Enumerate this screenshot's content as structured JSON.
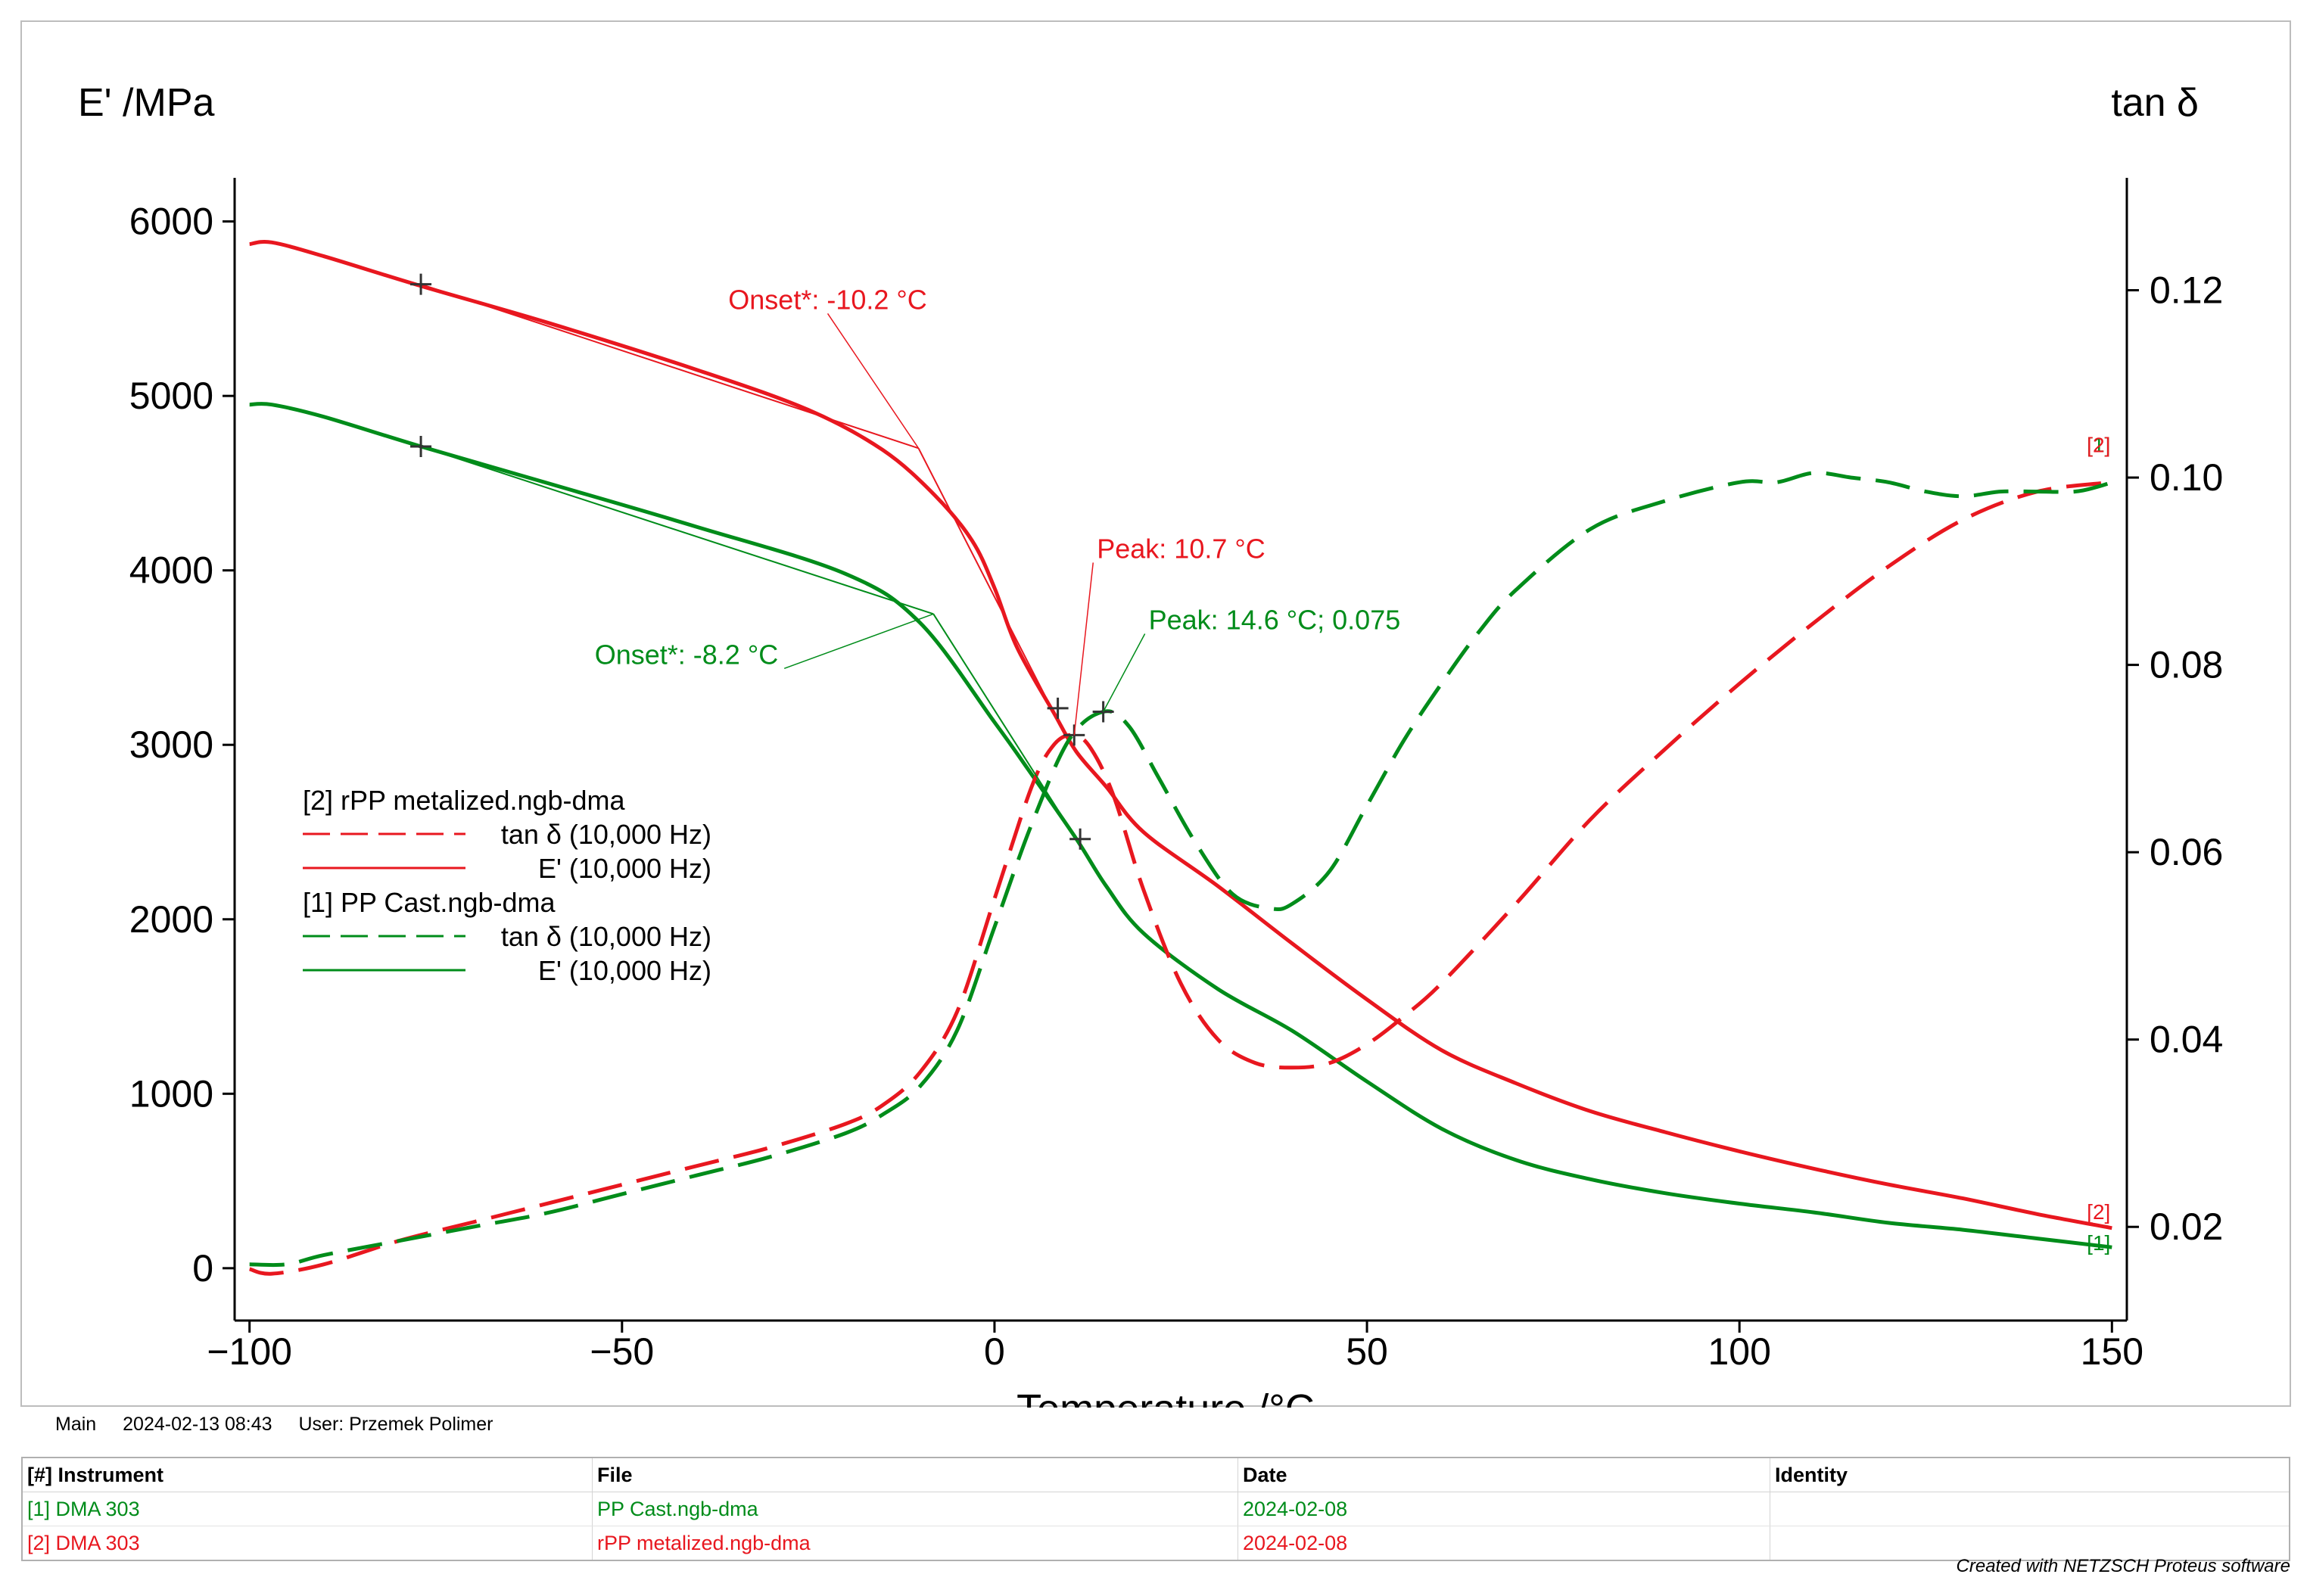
{
  "chart_data": {
    "type": "line",
    "title": "",
    "xlabel": "Temperature /°C",
    "ylabel_left": "E' /MPa",
    "ylabel_right": "tan δ",
    "xlim": [
      -102,
      152
    ],
    "ylim_left": [
      -300,
      6250
    ],
    "ylim_right": [
      0.01,
      0.132
    ],
    "x_ticks": [
      -100,
      -50,
      0,
      50,
      100,
      150
    ],
    "x_tick_labels": [
      "−100",
      "−50",
      "0",
      "50",
      "100",
      "150"
    ],
    "y_left_ticks": [
      0,
      1000,
      2000,
      3000,
      4000,
      5000,
      6000
    ],
    "y_right_ticks": [
      0.02,
      0.04,
      0.06,
      0.08,
      0.1,
      0.12
    ],
    "y_right_tick_labels": [
      "0.02",
      "0.04",
      "0.06",
      "0.08",
      "0.10",
      "0.12"
    ],
    "grid": false,
    "colors": {
      "red": "#e8171f",
      "green": "#008c1a"
    },
    "legend": {
      "placement": "center-left",
      "groups": [
        {
          "header": "[2]  rPP metalized.ngb-dma",
          "color": "#e8171f",
          "entries": [
            {
              "label": "tan δ (10,000 Hz)",
              "style": "dashed"
            },
            {
              "label": "E' (10,000 Hz)",
              "style": "solid"
            }
          ]
        },
        {
          "header": "[1]  PP Cast.ngb-dma",
          "color": "#008c1a",
          "entries": [
            {
              "label": "tan δ (10,000 Hz)",
              "style": "dashed"
            },
            {
              "label": "E' (10,000 Hz)",
              "style": "solid"
            }
          ]
        }
      ]
    },
    "series": [
      {
        "name": "[2] rPP metalized E' (10,000 Hz)",
        "file": "rPP metalized.ngb-dma",
        "axis": "left",
        "color": "#e8171f",
        "style": "solid",
        "x": [
          -100,
          -97,
          -90,
          -77,
          -60,
          -40,
          -25,
          -15,
          -8,
          -3,
          0,
          3,
          8,
          11,
          15,
          20,
          30,
          40,
          50,
          60,
          70,
          80,
          90,
          100,
          110,
          120,
          130,
          140,
          150
        ],
        "y": [
          5870,
          5880,
          5800,
          5630,
          5420,
          5150,
          4920,
          4690,
          4430,
          4170,
          3900,
          3560,
          3180,
          2960,
          2760,
          2500,
          2190,
          1860,
          1540,
          1250,
          1060,
          900,
          780,
          670,
          570,
          480,
          400,
          310,
          230
        ]
      },
      {
        "name": "[1] PP Cast E' (10,000 Hz)",
        "file": "PP Cast.ngb-dma",
        "axis": "left",
        "color": "#008c1a",
        "style": "solid",
        "x": [
          -100,
          -97,
          -90,
          -77,
          -60,
          -40,
          -20,
          -10,
          0,
          5,
          11,
          15,
          20,
          30,
          40,
          50,
          60,
          70,
          80,
          90,
          100,
          110,
          120,
          130,
          140,
          150
        ],
        "y": [
          4950,
          4950,
          4880,
          4710,
          4500,
          4250,
          3980,
          3700,
          3130,
          2830,
          2460,
          2190,
          1920,
          1600,
          1360,
          1070,
          800,
          620,
          510,
          430,
          370,
          320,
          260,
          220,
          170,
          120
        ]
      },
      {
        "name": "[2] rPP metalized tan δ (10,000 Hz)",
        "file": "rPP metalized.ngb-dma",
        "axis": "right",
        "color": "#e8171f",
        "style": "dashed",
        "x": [
          -100,
          -97,
          -90,
          -80,
          -70,
          -60,
          -50,
          -40,
          -30,
          -20,
          -15,
          -10,
          -5,
          0,
          5,
          8,
          10.7,
          13,
          16,
          20,
          25,
          30,
          35,
          40,
          45,
          50,
          55,
          60,
          70,
          80,
          90,
          100,
          110,
          120,
          130,
          140,
          150
        ],
        "y": [
          0.0155,
          0.015,
          0.016,
          0.0185,
          0.0205,
          0.0225,
          0.0245,
          0.0265,
          0.0285,
          0.031,
          0.033,
          0.0365,
          0.043,
          0.055,
          0.067,
          0.0715,
          0.0725,
          0.071,
          0.066,
          0.056,
          0.046,
          0.04,
          0.0375,
          0.037,
          0.0375,
          0.0395,
          0.0425,
          0.046,
          0.0545,
          0.0635,
          0.071,
          0.078,
          0.0845,
          0.0905,
          0.0955,
          0.0985,
          0.0995
        ]
      },
      {
        "name": "[1] PP Cast tan δ (10,000 Hz)",
        "file": "PP Cast.ngb-dma",
        "axis": "right",
        "color": "#008c1a",
        "style": "dashed",
        "x": [
          -100,
          -95,
          -90,
          -80,
          -70,
          -60,
          -50,
          -40,
          -30,
          -20,
          -15,
          -10,
          -5,
          0,
          5,
          10,
          14.6,
          18,
          22,
          27,
          32,
          37,
          40,
          45,
          50,
          55,
          60,
          65,
          70,
          80,
          90,
          100,
          105,
          110,
          115,
          120,
          125,
          130,
          135,
          140,
          145,
          148,
          150
        ],
        "y": [
          0.016,
          0.016,
          0.017,
          0.0185,
          0.02,
          0.0215,
          0.0235,
          0.0255,
          0.0275,
          0.03,
          0.032,
          0.035,
          0.041,
          0.052,
          0.063,
          0.072,
          0.075,
          0.0735,
          0.068,
          0.061,
          0.0555,
          0.054,
          0.0545,
          0.058,
          0.065,
          0.072,
          0.078,
          0.0835,
          0.088,
          0.0945,
          0.0975,
          0.0995,
          0.0995,
          0.1005,
          0.1,
          0.0995,
          0.0985,
          0.098,
          0.0985,
          0.0985,
          0.0985,
          0.099,
          0.0995
        ]
      }
    ],
    "onset_constructions": [
      {
        "series": "[2] rPP metalized E' (10,000 Hz)",
        "color": "#e8171f",
        "tangent1": [
          [
            -77,
            5640
          ],
          [
            -10.2,
            4700
          ]
        ],
        "tangent2": [
          [
            -10.2,
            4700
          ],
          [
            8,
            3180
          ]
        ],
        "crossings": [
          [
            -77,
            5640
          ],
          [
            8.5,
            3210
          ]
        ]
      },
      {
        "series": "[1] PP Cast E' (10,000 Hz)",
        "color": "#008c1a",
        "tangent1": [
          [
            -77,
            4710
          ],
          [
            -8.2,
            3750
          ]
        ],
        "tangent2": [
          [
            -8.2,
            3750
          ],
          [
            11,
            2460
          ]
        ],
        "crossings": [
          [
            -77,
            4710
          ],
          [
            11.5,
            2460
          ]
        ]
      }
    ],
    "peaks": [
      {
        "series": "[2] rPP metalized tan δ (10,000 Hz)",
        "x": 10.7,
        "y": 0.0725,
        "color": "#e8171f"
      },
      {
        "series": "[1] PP Cast tan δ (10,000 Hz)",
        "x": 14.6,
        "y": 0.075,
        "color": "#008c1a"
      }
    ],
    "annotations": [
      {
        "text": "Onset*: -10.2 °C",
        "color": "#e8171f",
        "x": -10.2,
        "y": 4700,
        "axis": "left"
      },
      {
        "text": "Onset*: -8.2 °C",
        "color": "#008c1a",
        "x": -8.2,
        "y": 3750,
        "axis": "left"
      },
      {
        "text": "Peak: 10.7 °C",
        "color": "#e8171f",
        "x": 10.7,
        "y": 0.0725,
        "axis": "right"
      },
      {
        "text": "Peak: 14.6 °C; 0.075",
        "color": "#008c1a",
        "x": 14.6,
        "y": 0.075,
        "axis": "right"
      }
    ],
    "end_markers": [
      {
        "text": "[1]",
        "color": "#008c1a",
        "series": "[1] PP Cast tan δ (10,000 Hz)"
      },
      {
        "text": "[2]",
        "color": "#e8171f",
        "series": "[2] rPP metalized tan δ (10,000 Hz)"
      },
      {
        "text": "[2]",
        "color": "#e8171f",
        "series": "[2] rPP metalized E' (10,000 Hz)"
      },
      {
        "text": "[1]",
        "color": "#008c1a",
        "series": "[1] PP Cast E' (10,000 Hz)"
      }
    ]
  },
  "footer": {
    "tab": "Main",
    "datetime": "2024-02-13 08:43",
    "user": "User: Przemek Polimer"
  },
  "table": {
    "headers": [
      "[#] Instrument",
      "File",
      "Date",
      "Identity"
    ],
    "rows": [
      [
        "[1] DMA 303",
        "PP Cast.ngb-dma",
        "2024-02-08",
        ""
      ],
      [
        "[2] DMA 303",
        "rPP metalized.ngb-dma",
        "2024-02-08",
        ""
      ]
    ]
  },
  "credit": "Created with NETZSCH Proteus software"
}
